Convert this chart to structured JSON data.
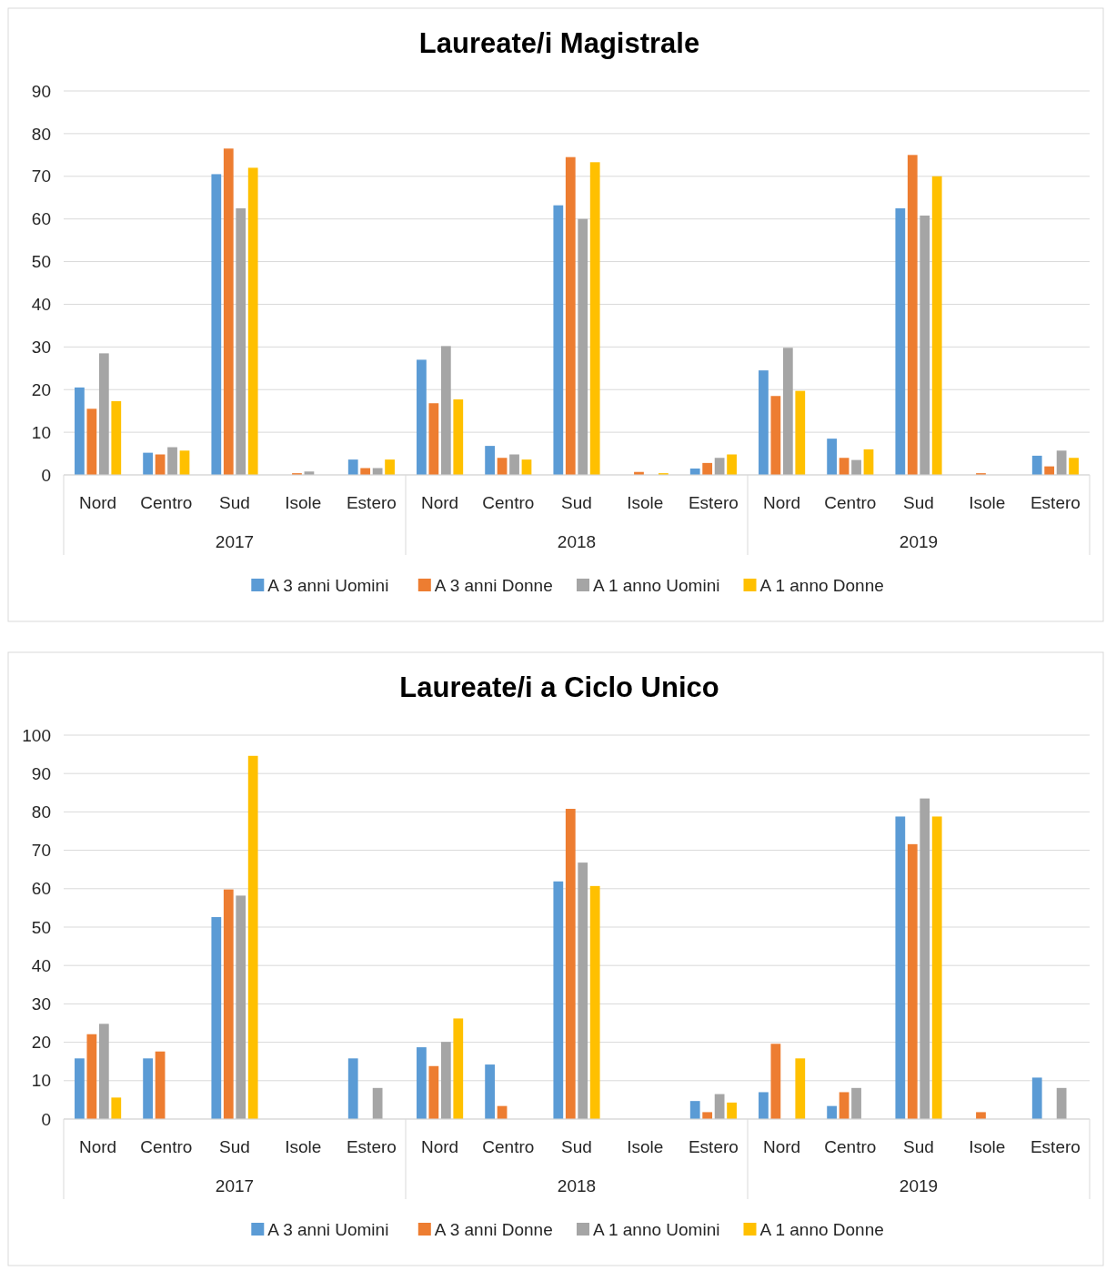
{
  "chart_data": [
    {
      "type": "bar",
      "title": "Laureate/i Magistrale",
      "categories": [
        "Nord",
        "Centro",
        "Sud",
        "Isole",
        "Estero",
        "Nord",
        "Centro",
        "Sud",
        "Isole",
        "Estero",
        "Nord",
        "Centro",
        "Sud",
        "Isole",
        "Estero"
      ],
      "annotations": [
        "2017",
        "2018",
        "2019"
      ],
      "series": [
        {
          "name": "A 3 anni Uomini",
          "color": "#5b9bd5",
          "values": [
            20.5,
            5.2,
            70.5,
            0,
            3.6,
            27,
            6.8,
            63.2,
            0,
            1.5,
            24.5,
            8.5,
            62.5,
            0,
            4.5
          ]
        },
        {
          "name": "A 3 anni Donne",
          "color": "#ed7d31",
          "values": [
            15.5,
            4.8,
            76.5,
            0.4,
            1.6,
            16.8,
            4,
            74.5,
            0.7,
            2.8,
            18.5,
            4,
            75,
            0.4,
            2
          ]
        },
        {
          "name": "A 1 anno Uomini",
          "color": "#a5a5a5",
          "values": [
            28.5,
            6.5,
            62.5,
            0.8,
            1.6,
            30.2,
            4.8,
            60,
            0,
            4,
            29.8,
            3.5,
            60.8,
            0,
            5.7
          ]
        },
        {
          "name": "A 1 anno Donne",
          "color": "#ffc000",
          "values": [
            17.3,
            5.7,
            72,
            0,
            3.6,
            17.7,
            3.6,
            73.3,
            0.4,
            4.8,
            19.7,
            6,
            70,
            0,
            4
          ]
        }
      ],
      "ylim": [
        0,
        90
      ],
      "yticks": [
        0,
        10,
        20,
        30,
        40,
        50,
        60,
        70,
        80,
        90
      ],
      "grid": "y",
      "legend": "bottom"
    },
    {
      "type": "bar",
      "title": "Laureate/i a Ciclo Unico",
      "categories": [
        "Nord",
        "Centro",
        "Sud",
        "Isole",
        "Estero",
        "Nord",
        "Centro",
        "Sud",
        "Isole",
        "Estero",
        "Nord",
        "Centro",
        "Sud",
        "Isole",
        "Estero"
      ],
      "annotations": [
        "2017",
        "2018",
        "2019"
      ],
      "series": [
        {
          "name": "A 3 anni Uomini",
          "color": "#5b9bd5",
          "values": [
            15.8,
            15.8,
            52.6,
            0,
            15.8,
            18.7,
            14.2,
            61.9,
            0,
            4.7,
            7,
            3.4,
            78.8,
            0,
            10.8
          ]
        },
        {
          "name": "A 3 anni Donne",
          "color": "#ed7d31",
          "values": [
            22.1,
            17.6,
            59.8,
            0,
            0,
            13.8,
            3.4,
            80.8,
            0,
            1.8,
            19.6,
            7,
            71.6,
            1.8,
            0
          ]
        },
        {
          "name": "A 1 anno Uomini",
          "color": "#a5a5a5",
          "values": [
            24.8,
            0,
            58.2,
            0,
            8.1,
            20.1,
            0,
            66.8,
            0,
            6.5,
            0,
            8.1,
            83.5,
            0,
            8.1
          ]
        },
        {
          "name": "A 1 anno Donne",
          "color": "#ffc000",
          "values": [
            5.6,
            0,
            94.6,
            0,
            0,
            26.2,
            0,
            60.7,
            0,
            4.3,
            15.8,
            0,
            78.8,
            0,
            0
          ]
        }
      ],
      "ylim": [
        0,
        100
      ],
      "yticks": [
        0,
        10,
        20,
        30,
        40,
        50,
        60,
        70,
        80,
        90,
        100
      ],
      "grid": "y",
      "legend": "bottom"
    }
  ]
}
